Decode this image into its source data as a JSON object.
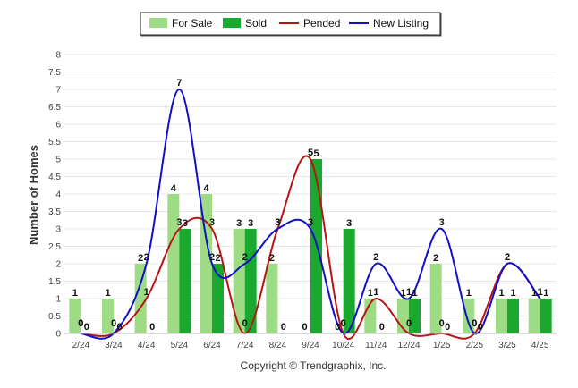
{
  "chart_data": {
    "type": "bar",
    "categories": [
      "2/24",
      "3/24",
      "4/24",
      "5/24",
      "6/24",
      "7/24",
      "8/24",
      "9/24",
      "10/24",
      "11/24",
      "12/24",
      "1/25",
      "2/25",
      "3/25",
      "4/25"
    ],
    "ylabel": "Number of Homes",
    "ylim": [
      0,
      8
    ],
    "yticks": [
      "0",
      "0.5",
      "1",
      "1.5",
      "2",
      "2.5",
      "3",
      "3.5",
      "4",
      "4.5",
      "5",
      "5.5",
      "6",
      "6.5",
      "7",
      "7.5",
      "8"
    ],
    "grid": true,
    "legend_position": "top-center",
    "series": [
      {
        "name": "For Sale",
        "kind": "bar",
        "color": "#9ddb85",
        "values": [
          1,
          1,
          2,
          4,
          4,
          3,
          2,
          0,
          0,
          1,
          1,
          2,
          1,
          1,
          1
        ]
      },
      {
        "name": "Sold",
        "kind": "bar",
        "color": "#1aa82e",
        "values": [
          0,
          0,
          0,
          3,
          2,
          3,
          0,
          5,
          3,
          0,
          1,
          0,
          0,
          1,
          1
        ]
      },
      {
        "name": "Pended",
        "kind": "line",
        "color": "#b81414",
        "values": [
          0,
          0,
          1,
          3,
          3,
          0,
          3,
          5,
          0,
          1,
          0,
          0,
          0,
          2,
          1
        ]
      },
      {
        "name": "New Listing",
        "kind": "line",
        "color": "#1010c8",
        "values": [
          0,
          0,
          2,
          7,
          2,
          2,
          3,
          3,
          0,
          2,
          1,
          3,
          0,
          2,
          1
        ]
      }
    ]
  },
  "footer": "Copyright © Trendgraphix, Inc."
}
